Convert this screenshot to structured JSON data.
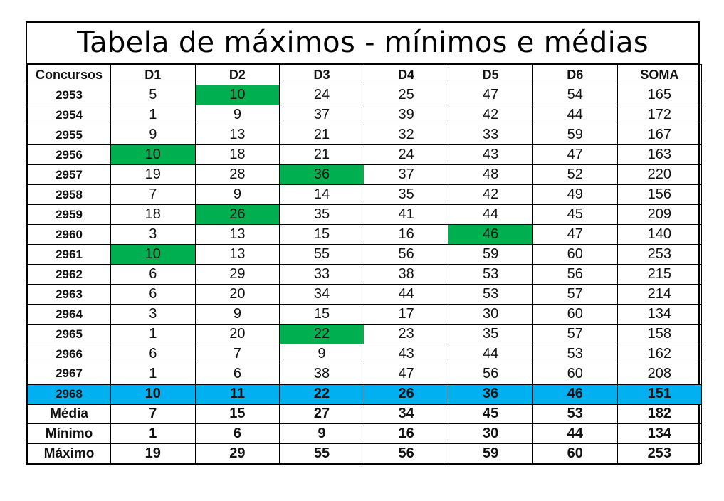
{
  "title": "Tabela de máximos - mínimos e médias",
  "headers": [
    "Concursos",
    "D1",
    "D2",
    "D3",
    "D4",
    "D5",
    "D6",
    "SOMA"
  ],
  "colors": {
    "highlight_row": "#00b0f0",
    "green_cell": "#00b050"
  },
  "rows": [
    {
      "id": "2953",
      "values": [
        "5",
        "10",
        "24",
        "25",
        "47",
        "54",
        "165"
      ],
      "green": [
        1
      ]
    },
    {
      "id": "2954",
      "values": [
        "1",
        "9",
        "37",
        "39",
        "42",
        "44",
        "172"
      ],
      "green": []
    },
    {
      "id": "2955",
      "values": [
        "9",
        "13",
        "21",
        "32",
        "33",
        "59",
        "167"
      ],
      "green": []
    },
    {
      "id": "2956",
      "values": [
        "10",
        "18",
        "21",
        "24",
        "43",
        "47",
        "163"
      ],
      "green": [
        0
      ]
    },
    {
      "id": "2957",
      "values": [
        "19",
        "28",
        "36",
        "37",
        "48",
        "52",
        "220"
      ],
      "green": [
        2
      ]
    },
    {
      "id": "2958",
      "values": [
        "7",
        "9",
        "14",
        "35",
        "42",
        "49",
        "156"
      ],
      "green": []
    },
    {
      "id": "2959",
      "values": [
        "18",
        "26",
        "35",
        "41",
        "44",
        "45",
        "209"
      ],
      "green": [
        1
      ]
    },
    {
      "id": "2960",
      "values": [
        "3",
        "13",
        "15",
        "16",
        "46",
        "47",
        "140"
      ],
      "green": [
        4
      ]
    },
    {
      "id": "2961",
      "values": [
        "10",
        "13",
        "55",
        "56",
        "59",
        "60",
        "253"
      ],
      "green": [
        0
      ]
    },
    {
      "id": "2962",
      "values": [
        "6",
        "29",
        "33",
        "38",
        "53",
        "56",
        "215"
      ],
      "green": []
    },
    {
      "id": "2963",
      "values": [
        "6",
        "20",
        "34",
        "44",
        "53",
        "57",
        "214"
      ],
      "green": []
    },
    {
      "id": "2964",
      "values": [
        "3",
        "9",
        "15",
        "17",
        "30",
        "60",
        "134"
      ],
      "green": []
    },
    {
      "id": "2965",
      "values": [
        "1",
        "20",
        "22",
        "23",
        "35",
        "57",
        "158"
      ],
      "green": [
        2
      ]
    },
    {
      "id": "2966",
      "values": [
        "6",
        "7",
        "9",
        "43",
        "44",
        "53",
        "162"
      ],
      "green": []
    },
    {
      "id": "2967",
      "values": [
        "1",
        "6",
        "38",
        "47",
        "56",
        "60",
        "208"
      ],
      "green": []
    }
  ],
  "highlight": {
    "id": "2968",
    "values": [
      "10",
      "11",
      "22",
      "26",
      "36",
      "46",
      "151"
    ]
  },
  "stats": [
    {
      "label": "Média",
      "values": [
        "7",
        "15",
        "27",
        "34",
        "45",
        "53",
        "182"
      ]
    },
    {
      "label": "Mínimo",
      "values": [
        "1",
        "6",
        "9",
        "16",
        "30",
        "44",
        "134"
      ]
    },
    {
      "label": "Máximo",
      "values": [
        "19",
        "29",
        "55",
        "56",
        "59",
        "60",
        "253"
      ]
    }
  ]
}
